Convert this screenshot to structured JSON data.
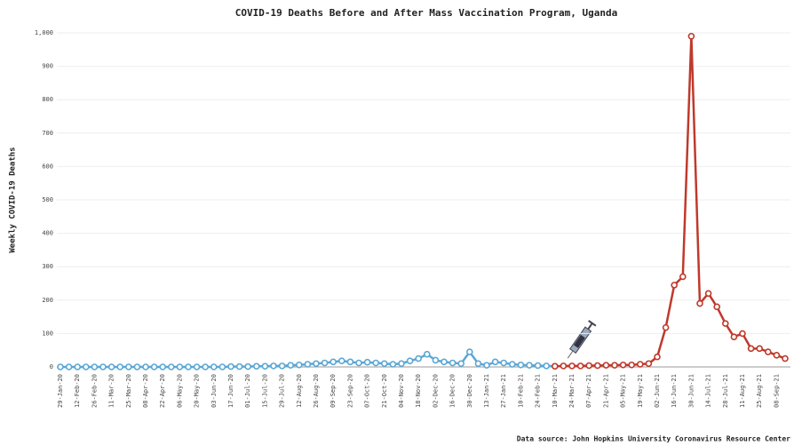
{
  "chart_data": {
    "type": "line",
    "title": "COVID-19 Deaths Before and After Mass Vaccination Program, Uganda",
    "y_label": "Weekly COVID-19 Deaths",
    "source": "Data source: John Hopkins University Coronavirus Resource Center",
    "categories": [
      "29-Jan-20",
      null,
      "12-Feb-20",
      null,
      "26-Feb-20",
      null,
      "11-Mar-20",
      null,
      "25-Mar-20",
      null,
      "08-Apr-20",
      null,
      "22-Apr-20",
      null,
      "06-May-20",
      null,
      "20-May-20",
      null,
      "03-Jun-20",
      null,
      "17-Jun-20",
      null,
      "01-Jul-20",
      null,
      "15-Jul-20",
      null,
      "29-Jul-20",
      null,
      "12-Aug-20",
      null,
      "26-Aug-20",
      null,
      "09-Sep-20",
      null,
      "23-Sep-20",
      null,
      "07-Oct-20",
      null,
      "21-Oct-20",
      null,
      "04-Nov-20",
      null,
      "18-Nov-20",
      null,
      "02-Dec-20",
      null,
      "16-Dec-20",
      null,
      "30-Dec-20",
      null,
      "13-Jan-21",
      null,
      "27-Jan-21",
      null,
      "10-Feb-21",
      null,
      "24-Feb-21",
      null,
      "10-Mar-21",
      null,
      "24-Mar-21",
      null,
      "07-Apr-21",
      null,
      "21-Apr-21",
      null,
      "05-May-21",
      null,
      "19-May-21",
      null,
      "02-Jun-21",
      null,
      "16-Jun-21",
      null,
      "30-Jun-21",
      null,
      "14-Jul-21",
      null,
      "28-Jul-21",
      null,
      "11-Aug-21",
      null,
      "25-Aug-21",
      null,
      "08-Sep-21",
      null
    ],
    "series": [
      {
        "color": "#5aa7d6",
        "values": [
          0,
          0,
          0,
          0,
          0,
          0,
          0,
          0,
          0,
          0,
          0,
          0,
          0,
          0,
          0,
          0,
          0,
          0,
          0,
          0,
          1,
          1,
          1,
          2,
          2,
          3,
          3,
          5,
          6,
          8,
          10,
          12,
          15,
          18,
          15,
          12,
          14,
          12,
          10,
          8,
          10,
          18,
          25,
          38,
          20,
          15,
          12,
          10,
          45,
          10,
          5,
          15,
          12,
          8,
          6,
          5,
          4,
          3,
          2,
          null,
          null,
          null,
          null,
          null,
          null,
          null,
          null,
          null,
          null,
          null,
          null,
          null,
          null,
          null,
          null,
          null,
          null,
          null,
          null,
          null,
          null,
          null,
          null,
          null,
          null,
          null
        ]
      },
      {
        "color": "#c0392b",
        "values": [
          null,
          null,
          null,
          null,
          null,
          null,
          null,
          null,
          null,
          null,
          null,
          null,
          null,
          null,
          null,
          null,
          null,
          null,
          null,
          null,
          null,
          null,
          null,
          null,
          null,
          null,
          null,
          null,
          null,
          null,
          null,
          null,
          null,
          null,
          null,
          null,
          null,
          null,
          null,
          null,
          null,
          null,
          null,
          null,
          null,
          null,
          null,
          null,
          null,
          null,
          null,
          null,
          null,
          null,
          null,
          null,
          null,
          null,
          2,
          3,
          3,
          3,
          4,
          4,
          5,
          5,
          6,
          6,
          8,
          10,
          30,
          118,
          245,
          270,
          990,
          190,
          220,
          180,
          130,
          90,
          100,
          55,
          55,
          45,
          35,
          25
        ]
      }
    ],
    "ylim": [
      0,
      1000
    ],
    "yticks": [
      0,
      100,
      200,
      300,
      400,
      500,
      600,
      700,
      800,
      900,
      {
        "value": 1000,
        "label": "1,000"
      }
    ],
    "grid": true
  }
}
